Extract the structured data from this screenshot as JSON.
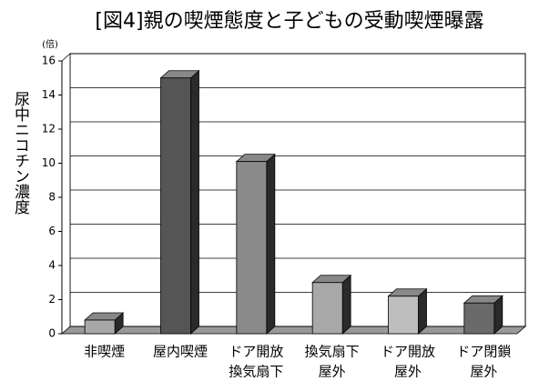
{
  "chart_data": {
    "type": "bar3d",
    "title": "[図4]親の喫煙態度と子どもの受動喫煙曝露",
    "y_label": "尿中ニコチン濃度",
    "y_unit": "(倍)",
    "categories": [
      [
        "非喫煙"
      ],
      [
        "屋内喫煙"
      ],
      [
        "ドア開放",
        "換気扇下"
      ],
      [
        "換気扇下",
        "屋外"
      ],
      [
        "ドア開放",
        "屋外"
      ],
      [
        "ドア閉鎖",
        "屋外"
      ]
    ],
    "values": [
      0.8,
      15.0,
      10.1,
      3.0,
      2.2,
      1.8
    ],
    "colors": [
      "#a8a8a8",
      "#555555",
      "#8a8a8a",
      "#a8a8a8",
      "#bdbdbd",
      "#6a6a6a"
    ],
    "ylim": [
      0,
      16
    ],
    "yticks": [
      0,
      2,
      4,
      6,
      8,
      10,
      12,
      14,
      16
    ],
    "grid": true
  }
}
